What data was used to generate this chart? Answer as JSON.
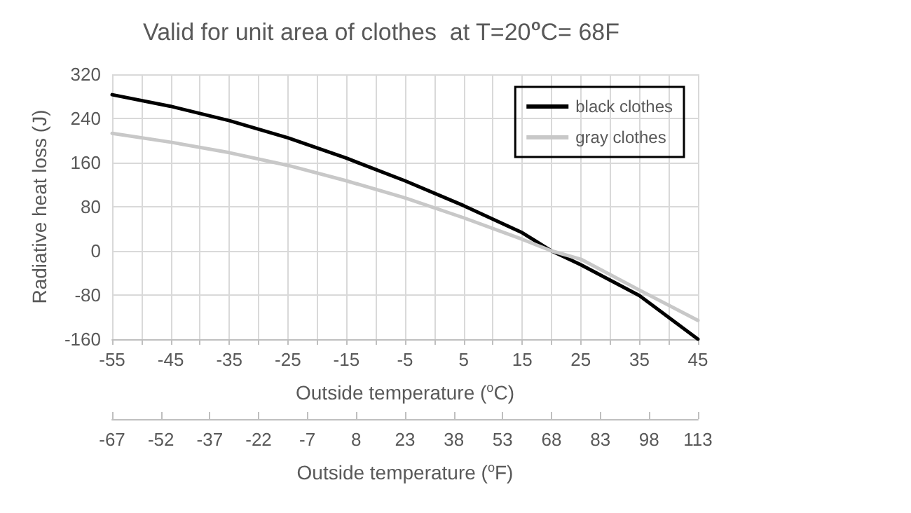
{
  "chart_data": {
    "type": "line",
    "title": "Valid for unit area of clothes  at T=20$^{o}$C= 68F",
    "xlabel": "Outside temperature ($^{o}$C)",
    "ylabel": "Radiative heat loss (J)",
    "x2label": "Outside temperature ($^{o}$F)",
    "x": [
      -55,
      -45,
      -35,
      -25,
      -15,
      -5,
      5,
      15,
      20,
      25,
      35,
      45
    ],
    "series": [
      {
        "name": "black clothes",
        "color": "#000000",
        "values": [
          283,
          262,
          236,
          205,
          168,
          127,
          82,
          33,
          0,
          -25,
          -81,
          -160
        ]
      },
      {
        "name": "gray clothes",
        "color": "#c8c8c8",
        "values": [
          213,
          197,
          178,
          155,
          127,
          96,
          60,
          21,
          0,
          -15,
          -71,
          -126
        ]
      }
    ],
    "xlim": [
      -55,
      45
    ],
    "xticks": [
      -55,
      {
        "value": -50,
        "label": null
      },
      -45,
      {
        "value": -40,
        "label": null
      },
      -35,
      {
        "value": -30,
        "label": null
      },
      -25,
      {
        "value": -20,
        "label": null
      },
      -15,
      {
        "value": -10,
        "label": null
      },
      -5,
      {
        "value": 0,
        "label": null
      },
      5,
      {
        "value": 10,
        "label": null
      },
      15,
      {
        "value": 20,
        "label": null
      },
      25,
      {
        "value": 30,
        "label": null
      },
      35,
      {
        "value": 40,
        "label": null
      },
      45
    ],
    "ylim": [
      -160,
      320
    ],
    "yticks": [
      -160,
      -80,
      0,
      80,
      160,
      240,
      320
    ],
    "x2lim": [
      -67,
      113
    ],
    "x2ticks": [
      -67,
      -52,
      -37,
      -22,
      -7,
      8,
      23,
      38,
      53,
      68,
      83,
      98,
      113
    ],
    "grid": true,
    "legend": "top right",
    "marker": "none",
    "line_style": "solid"
  }
}
